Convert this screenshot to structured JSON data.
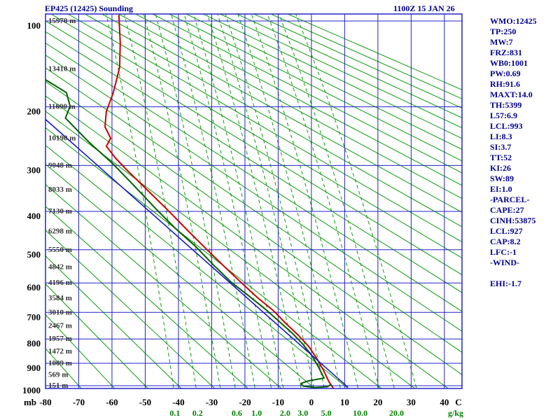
{
  "header": {
    "title": "EP425 (12425) Sounding",
    "datetime": "1100Z 15 JAN 26"
  },
  "stats_panel": {
    "lines": [
      "WMO:12425",
      "TP:250",
      "MW:7",
      "FRZ:831",
      "WB0:1001",
      "PW:0.69",
      "RH:91.6",
      "MAXT:14.0",
      "TH:5399",
      "L57:6.9",
      "LCL:993",
      "LI:8.3",
      "SI:3.7",
      "TT:52",
      "KI:26",
      "SW:89",
      "EI:1.0",
      "-PARCEL-",
      "CAPE:27",
      "CINH:53875",
      "LCL:927",
      "CAP:8.2",
      "LFC:-1",
      "-WIND-",
      "",
      "EHI:-1.7"
    ]
  },
  "colors": {
    "grid": "#2323c8",
    "adiabat": "#0a9a0a",
    "mixing": "#0a9a0a",
    "temperature": "#c80000",
    "dewpoint": "#005f00",
    "parcel": "#1818c8",
    "heading_text": "#00008b",
    "axis_text": "#000000",
    "height_text": "#333333",
    "mixing_text": "#008000"
  },
  "chart_data": {
    "type": "line",
    "diagram": "stuve-sounding",
    "x_axis": {
      "unit": "C",
      "ticks": [
        -80,
        -70,
        -60,
        -50,
        -40,
        -30,
        -20,
        -10,
        0,
        10,
        20,
        30,
        40
      ],
      "range": [
        -80,
        45.3
      ]
    },
    "y_axis": {
      "unit": "mb",
      "ticks": [
        100,
        200,
        300,
        400,
        500,
        600,
        700,
        800,
        900,
        1000
      ],
      "range": [
        100,
        1050
      ],
      "scale": "pressure^0.286 (Stuve)"
    },
    "mixing_unit": "g/kg",
    "height_labels": [
      {
        "p": 100,
        "label": "15970 m"
      },
      {
        "p": 150,
        "label": "13410 m"
      },
      {
        "p": 200,
        "label": "11690 m"
      },
      {
        "p": 250,
        "label": "10190 m"
      },
      {
        "p": 300,
        "label": "9048 m"
      },
      {
        "p": 350,
        "label": "8033 m"
      },
      {
        "p": 400,
        "label": "7130 m"
      },
      {
        "p": 450,
        "label": "6298 m"
      },
      {
        "p": 500,
        "label": "5550 m"
      },
      {
        "p": 550,
        "label": "4842 m"
      },
      {
        "p": 600,
        "label": "4196 m"
      },
      {
        "p": 650,
        "label": "3584 m"
      },
      {
        "p": 700,
        "label": "3010 m"
      },
      {
        "p": 750,
        "label": "2467 m"
      },
      {
        "p": 800,
        "label": "1957 m"
      },
      {
        "p": 850,
        "label": "1472 m"
      },
      {
        "p": 900,
        "label": "1009 m"
      },
      {
        "p": 950,
        "label": "569 m"
      },
      {
        "p": 1000,
        "label": "151 m"
      }
    ],
    "dry_adiabats": {
      "theta_c_start": -70,
      "theta_c_end": 250,
      "step": 10
    },
    "mixing_ratio_lines": [
      0.1,
      0.2,
      0.4,
      0.6,
      1,
      1.5,
      2,
      3,
      4,
      5,
      7,
      10,
      15,
      20,
      30
    ],
    "mixing_ratio_tick_labels": [
      {
        "w": 0.1,
        "label": "0.1"
      },
      {
        "w": 0.2,
        "label": "0.2"
      },
      {
        "w": 0.6,
        "label": "0.6"
      },
      {
        "w": 1,
        "label": "1.0"
      },
      {
        "w": 2,
        "label": "2.0"
      },
      {
        "w": 3,
        "label": "3.0"
      },
      {
        "w": 5,
        "label": "5.0"
      },
      {
        "w": 10,
        "label": "10.0"
      },
      {
        "w": 20,
        "label": "20.0"
      }
    ],
    "series": [
      {
        "name": "temperature",
        "points": [
          [
            -57.9,
            95
          ],
          [
            -57.5,
            121
          ],
          [
            -57.7,
            148
          ],
          [
            -59.6,
            180
          ],
          [
            -61.7,
            207
          ],
          [
            -62.1,
            231
          ],
          [
            -60.4,
            250
          ],
          [
            -61.7,
            264
          ],
          [
            -58.9,
            286
          ],
          [
            -55.8,
            307
          ],
          [
            -49.5,
            350
          ],
          [
            -43.2,
            397
          ],
          [
            -37.3,
            447
          ],
          [
            -31.6,
            498
          ],
          [
            -26.3,
            548
          ],
          [
            -21.1,
            599
          ],
          [
            -16.2,
            649
          ],
          [
            -11.6,
            692
          ],
          [
            -7.8,
            739
          ],
          [
            -3.8,
            787
          ],
          [
            -0.8,
            830
          ],
          [
            1.5,
            877
          ],
          [
            3.6,
            930
          ],
          [
            5.3,
            983
          ],
          [
            6.5,
            1010
          ]
        ]
      },
      {
        "name": "dewpoint",
        "points": [
          [
            -80,
            163
          ],
          [
            -73.7,
            180
          ],
          [
            -72.6,
            199
          ],
          [
            -74,
            217
          ],
          [
            -70,
            239
          ],
          [
            -66.7,
            258
          ],
          [
            -60,
            295
          ],
          [
            -53.7,
            339
          ],
          [
            -46.9,
            393
          ],
          [
            -41.1,
            441
          ],
          [
            -34.7,
            492
          ],
          [
            -29.5,
            544
          ],
          [
            -24.2,
            597
          ],
          [
            -18.9,
            642
          ],
          [
            -14.1,
            686
          ],
          [
            -9.9,
            731
          ],
          [
            -5.7,
            778
          ],
          [
            -2.5,
            822
          ],
          [
            0.2,
            868
          ],
          [
            2.3,
            921
          ],
          [
            3.8,
            965
          ],
          [
            -1,
            978
          ],
          [
            -3.2,
            990
          ],
          [
            -2.5,
            1002
          ],
          [
            1,
            1008
          ],
          [
            4.8,
            1005
          ],
          [
            5.8,
            995
          ]
        ]
      },
      {
        "name": "parcel",
        "points": [
          [
            -80,
            219
          ],
          [
            10.9,
            1006
          ]
        ]
      }
    ]
  }
}
